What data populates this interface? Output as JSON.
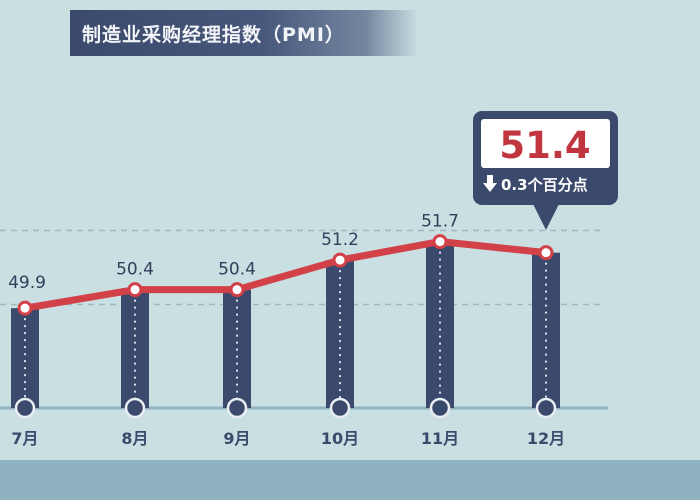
{
  "title": "制造业采购经理指数（PMI）",
  "chart_data": {
    "type": "line",
    "categories": [
      "7月",
      "8月",
      "9月",
      "10月",
      "11月",
      "12月"
    ],
    "series": [
      {
        "values": [
          49.9,
          50.4,
          50.4,
          51.2,
          51.7,
          51.4
        ]
      }
    ],
    "ylim": [
      47.2,
      53.5
    ],
    "grid": false,
    "reference_lines": [
      50.0,
      52.0
    ],
    "callout": {
      "category": "12月",
      "value": "51.4",
      "change_text": "0.3个百分点",
      "direction": "down"
    }
  },
  "colors": {
    "background": "#c9dfe2",
    "line": "#d24048",
    "bar": "#3b4a6c",
    "value_highlight": "#c0353e",
    "callout_dark": "#3b4a6c"
  },
  "icons": {
    "callout_direction": "arrow-down-icon"
  }
}
